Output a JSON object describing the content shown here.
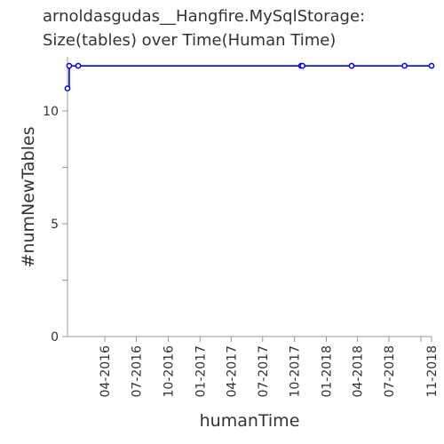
{
  "chart_data": {
    "type": "line",
    "title_lines": [
      "arnoldasgudas__Hangfire.MySqlStorage:",
      "Size(tables) over Time(Human Time)"
    ],
    "xlabel": "humanTime",
    "ylabel": "#numNewTables",
    "x_range": [
      "2015-12-15",
      "2018-11-01"
    ],
    "ylim": [
      0,
      12.4
    ],
    "y_ticks": [
      0,
      5,
      10
    ],
    "y_minor_ticks": [
      2.5,
      7.5
    ],
    "x_ticks": [
      {
        "date": "2016-04-01",
        "label": "04-2016"
      },
      {
        "date": "2016-07-01",
        "label": "07-2016"
      },
      {
        "date": "2016-10-01",
        "label": "10-2016"
      },
      {
        "date": "2017-01-01",
        "label": "01-2017"
      },
      {
        "date": "2017-04-01",
        "label": "04-2017"
      },
      {
        "date": "2017-07-01",
        "label": "07-2017"
      },
      {
        "date": "2017-10-01",
        "label": "10-2017"
      },
      {
        "date": "2018-01-01",
        "label": "01-2018"
      },
      {
        "date": "2018-04-01",
        "label": "04-2018"
      },
      {
        "date": "2018-07-01",
        "label": "07-2018"
      },
      {
        "date": "2018-11-01",
        "label": "11-2018"
      }
    ],
    "x_minor_ticks": [
      "2018-10-01"
    ],
    "grid": false,
    "series": [
      {
        "color": "#0000ee",
        "points": [
          {
            "x": "2015-12-15",
            "y": 11
          },
          {
            "x": "2015-12-20",
            "y": 12
          },
          {
            "x": "2016-01-15",
            "y": 12
          },
          {
            "x": "2017-10-20",
            "y": 12
          },
          {
            "x": "2017-10-24",
            "y": 12
          },
          {
            "x": "2018-03-15",
            "y": 12
          },
          {
            "x": "2018-08-15",
            "y": 12
          },
          {
            "x": "2018-11-01",
            "y": 12
          }
        ]
      }
    ]
  }
}
